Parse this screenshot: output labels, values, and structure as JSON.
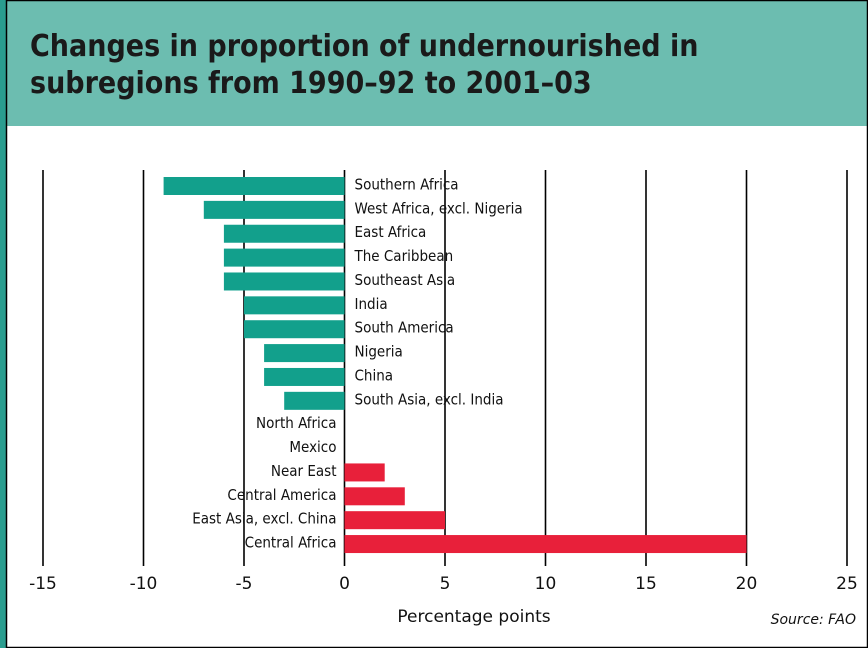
{
  "chart_data": {
    "type": "bar",
    "orientation": "horizontal",
    "title": "Changes in proportion of undernourished in subregions from 1990–92 to 2001–03",
    "xlabel": "Percentage points",
    "source": "Source: FAO",
    "categories": [
      "Southern Africa",
      "West Africa, excl. Nigeria",
      "East Africa",
      "The Caribbean",
      "Southeast Asia",
      "India",
      "South America",
      "Nigeria",
      "China",
      "South Asia, excl. India",
      "North Africa",
      "Mexico",
      "Near East",
      "Central America",
      "East Asia, excl. China",
      "Central Africa"
    ],
    "values": [
      -9,
      -7,
      -6,
      -6,
      -6,
      -5,
      -5,
      -4,
      -4,
      -3,
      0,
      0,
      2,
      3,
      5,
      20
    ],
    "colors": [
      "#12a08c",
      "#12a08c",
      "#12a08c",
      "#12a08c",
      "#12a08c",
      "#12a08c",
      "#12a08c",
      "#12a08c",
      "#12a08c",
      "#12a08c",
      "#12a08c",
      "#12a08c",
      "#e8203a",
      "#e8203a",
      "#e8203a",
      "#e8203a"
    ],
    "xlim": [
      -15,
      25
    ],
    "xticks": [
      -15,
      -10,
      -5,
      0,
      5,
      10,
      15,
      20,
      25
    ],
    "grid": true
  }
}
